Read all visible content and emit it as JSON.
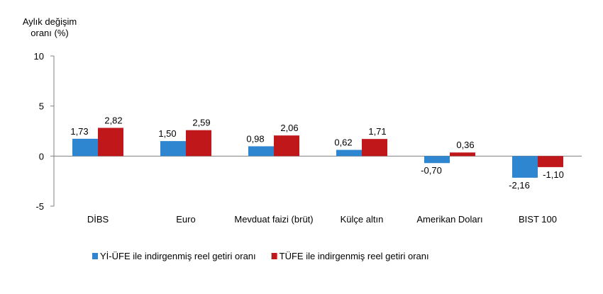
{
  "chart_data": {
    "type": "bar",
    "ylabel_lines": [
      "Aylık değişim",
      "oranı (%)"
    ],
    "ylim": [
      -5,
      10
    ],
    "yticks": [
      -5,
      0,
      5,
      10
    ],
    "ytick_labels": [
      "-5",
      "0",
      "5",
      "10"
    ],
    "grid": false,
    "legend_position": "bottom",
    "categories": [
      "DİBS",
      "Euro",
      "Mevduat faizi (brüt)",
      "Külçe altın",
      "Amerikan Doları",
      "BIST 100"
    ],
    "series": [
      {
        "name": "Yİ-ÜFE ile indirgenmiş reel getiri oranı",
        "color": "#2e86d1",
        "values": [
          1.73,
          1.5,
          0.98,
          0.62,
          -0.7,
          -2.16
        ],
        "labels": [
          "1,73",
          "1,50",
          "0,98",
          "0,62",
          "-0,70",
          "-2,16"
        ]
      },
      {
        "name": "TÜFE ile indirgenmiş reel getiri oranı",
        "color": "#c0171b",
        "values": [
          2.82,
          2.59,
          2.06,
          1.71,
          0.36,
          -1.1
        ],
        "labels": [
          "2,82",
          "2,59",
          "2,06",
          "1,71",
          "0,36",
          "-1,10"
        ]
      }
    ]
  }
}
